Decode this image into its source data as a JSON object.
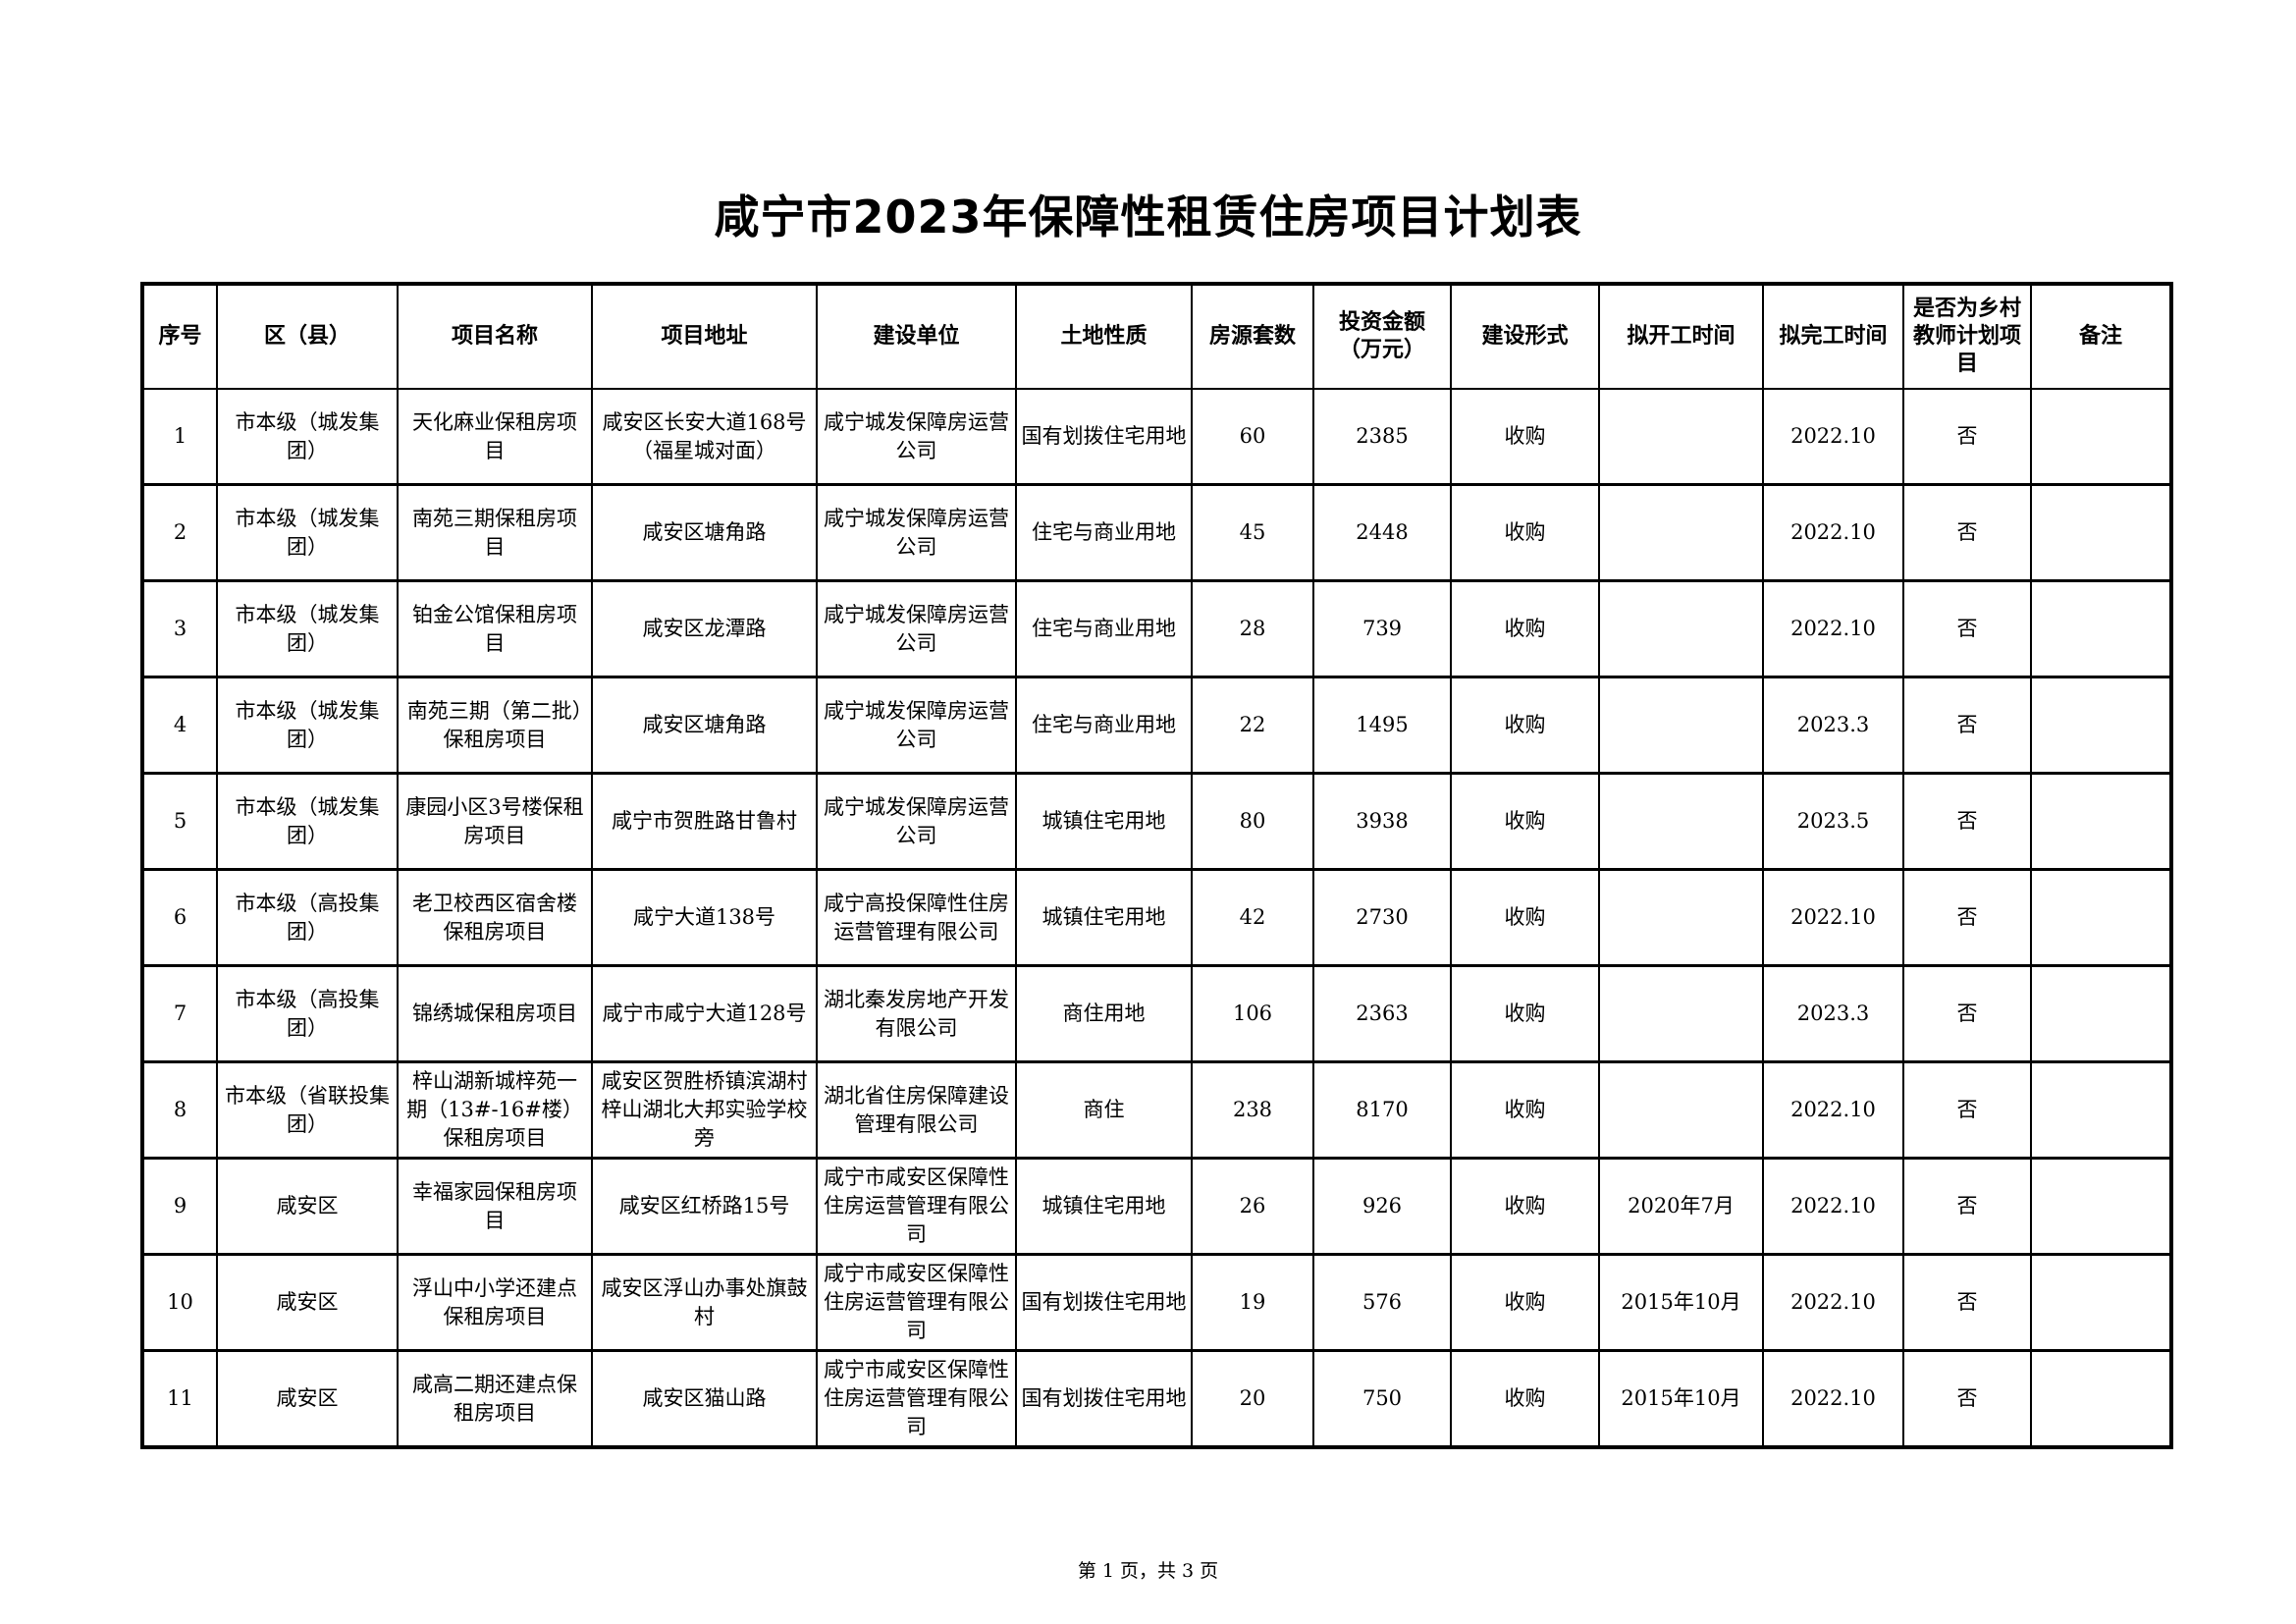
{
  "title": "咸宁市2023年保障性租赁住房项目计划表",
  "columns": [
    "序号",
    "区（县）",
    "项目名称",
    "项目地址",
    "建设单位",
    "土地性质",
    "房源套数",
    "投资金额（万元）",
    "建设形式",
    "拟开工时间",
    "拟完工时间",
    "是否为乡村教师计划项目",
    "备注"
  ],
  "rows": [
    [
      "1",
      "市本级（城发集团）",
      "天化麻业保租房项目",
      "咸安区长安大道168号（福星城对面）",
      "咸宁城发保障房运营公司",
      "国有划拨住宅用地",
      "60",
      "2385",
      "收购",
      "",
      "2022.10",
      "否",
      ""
    ],
    [
      "2",
      "市本级（城发集团）",
      "南苑三期保租房项目",
      "咸安区塘角路",
      "咸宁城发保障房运营公司",
      "住宅与商业用地",
      "45",
      "2448",
      "收购",
      "",
      "2022.10",
      "否",
      ""
    ],
    [
      "3",
      "市本级（城发集团）",
      "铂金公馆保租房项目",
      "咸安区龙潭路",
      "咸宁城发保障房运营公司",
      "住宅与商业用地",
      "28",
      "739",
      "收购",
      "",
      "2022.10",
      "否",
      ""
    ],
    [
      "4",
      "市本级（城发集团）",
      "南苑三期（第二批）保租房项目",
      "咸安区塘角路",
      "咸宁城发保障房运营公司",
      "住宅与商业用地",
      "22",
      "1495",
      "收购",
      "",
      "2023.3",
      "否",
      ""
    ],
    [
      "5",
      "市本级（城发集团）",
      "康园小区3号楼保租房项目",
      "咸宁市贺胜路甘鲁村",
      "咸宁城发保障房运营公司",
      "城镇住宅用地",
      "80",
      "3938",
      "收购",
      "",
      "2023.5",
      "否",
      ""
    ],
    [
      "6",
      "市本级（高投集团）",
      "老卫校西区宿舍楼保租房项目",
      "咸宁大道138号",
      "咸宁高投保障性住房运营管理有限公司",
      "城镇住宅用地",
      "42",
      "2730",
      "收购",
      "",
      "2022.10",
      "否",
      ""
    ],
    [
      "7",
      "市本级（高投集团）",
      "锦绣城保租房项目",
      "咸宁市咸宁大道128号",
      "湖北秦发房地产开发有限公司",
      "商住用地",
      "106",
      "2363",
      "收购",
      "",
      "2023.3",
      "否",
      ""
    ],
    [
      "8",
      "市本级（省联投集团）",
      "梓山湖新城梓苑一期（13#-16#楼）保租房项目",
      "咸安区贺胜桥镇滨湖村梓山湖北大邦实验学校旁",
      "湖北省住房保障建设管理有限公司",
      "商住",
      "238",
      "8170",
      "收购",
      "",
      "2022.10",
      "否",
      ""
    ],
    [
      "9",
      "咸安区",
      "幸福家园保租房项目",
      "咸安区红桥路15号",
      "咸宁市咸安区保障性住房运营管理有限公司",
      "城镇住宅用地",
      "26",
      "926",
      "收购",
      "2020年7月",
      "2022.10",
      "否",
      ""
    ],
    [
      "10",
      "咸安区",
      "浮山中小学还建点保租房项目",
      "咸安区浮山办事处旗鼓村",
      "咸宁市咸安区保障性住房运营管理有限公司",
      "国有划拨住宅用地",
      "19",
      "576",
      "收购",
      "2015年10月",
      "2022.10",
      "否",
      ""
    ],
    [
      "11",
      "咸安区",
      "咸高二期还建点保租房项目",
      "咸安区猫山路",
      "咸宁市咸安区保障性住房运营管理有限公司",
      "国有划拨住宅用地",
      "20",
      "750",
      "收购",
      "2015年10月",
      "2022.10",
      "否",
      ""
    ]
  ],
  "footer": "第 1 页，共 3 页"
}
